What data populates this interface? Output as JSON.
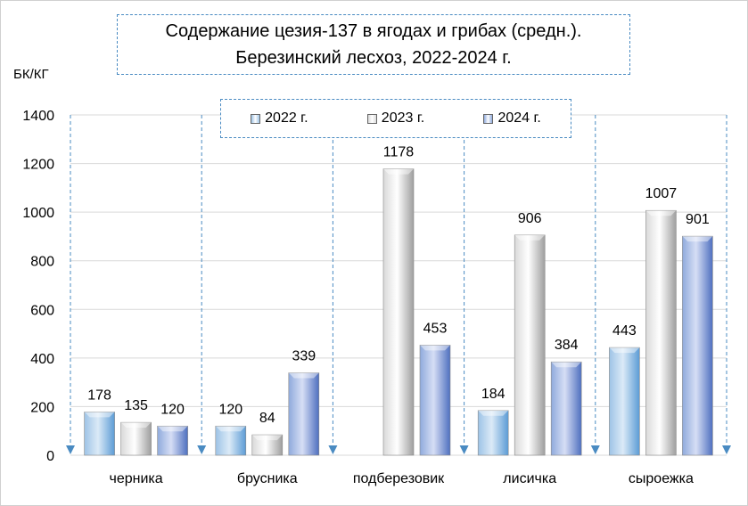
{
  "chart_data": {
    "type": "bar",
    "title": "Содержание цезия-137 в ягодах и грибах (средн.).",
    "subtitle": "Березинский лесхоз, 2022-2024 г.",
    "ylabel": "БК/КГ",
    "xlabel": "",
    "ylim": [
      0,
      1400
    ],
    "yticks": [
      0,
      200,
      400,
      600,
      800,
      1000,
      1200,
      1400
    ],
    "grid": true,
    "legend_position": "top-center",
    "categories": [
      "черника",
      "брусника",
      "подберезовик",
      "лисичка",
      "сыроежка"
    ],
    "series": [
      {
        "name": "2022 г.",
        "values": [
          178,
          120,
          null,
          184,
          443
        ],
        "color": "#9dc3e6"
      },
      {
        "name": "2023 г.",
        "values": [
          135,
          84,
          1178,
          906,
          1007
        ],
        "color": "#d9d9d9"
      },
      {
        "name": "2024 г.",
        "values": [
          120,
          339,
          453,
          384,
          901
        ],
        "color": "#8faadc"
      }
    ]
  },
  "colors": {
    "divider": "#4a8bc2",
    "grid": "#d9d9d9"
  }
}
